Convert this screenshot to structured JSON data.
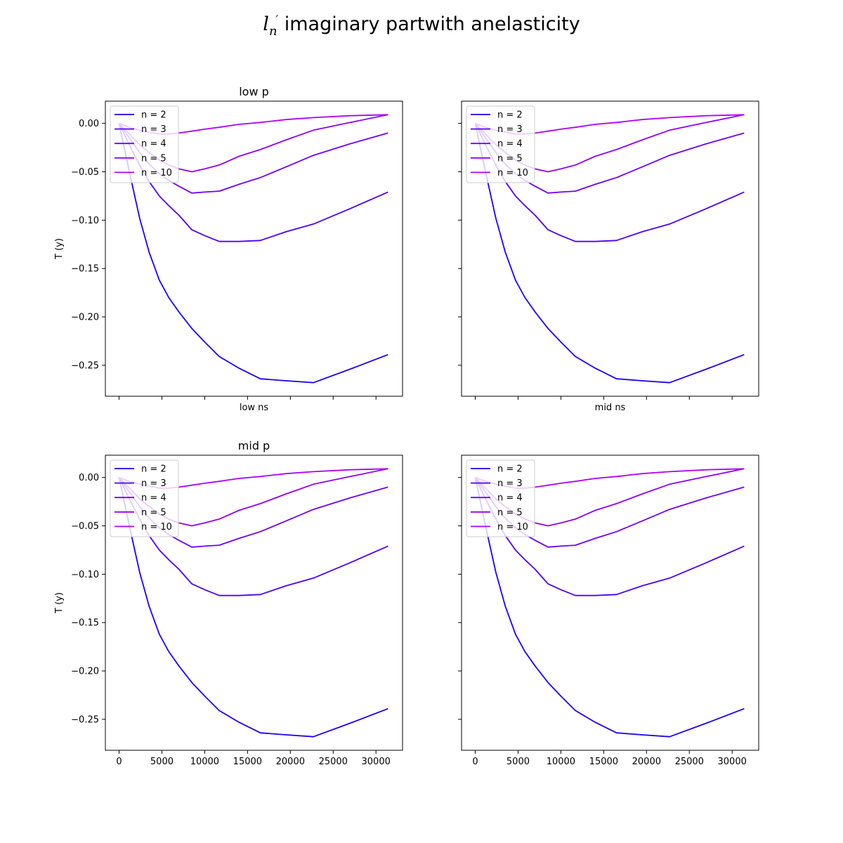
{
  "figure": {
    "suptitle_symbol": "l",
    "suptitle_sub": "n",
    "suptitle_prime": "′",
    "suptitle_text": " imaginary partwith anelasticity"
  },
  "colors": {
    "n2": "#1a00ff",
    "n3": "#4d00ff",
    "n4": "#7000ff",
    "n5": "#9300ff",
    "n10": "#b000ff"
  },
  "chart_data": [
    {
      "type": "line",
      "title": "low p",
      "xlabel": "low ns",
      "ylabel": "T (y)",
      "xlim": [
        -1600,
        33100
      ],
      "ylim": [
        -0.282,
        0.023
      ],
      "xticks": [
        "0",
        "5000",
        "10000",
        "15000",
        "20000",
        "25000",
        "30000"
      ],
      "xtick_values": [
        0,
        5000,
        10000,
        15000,
        20000,
        25000,
        30000
      ],
      "show_xtick_labels": false,
      "yticks": [
        "0.00",
        "−0.05",
        "−0.10",
        "−0.15",
        "−0.20",
        "−0.25"
      ],
      "ytick_values": [
        0.0,
        -0.05,
        -0.1,
        -0.15,
        -0.2,
        -0.25
      ],
      "show_ytick_labels": true,
      "legend_position": "upper-left",
      "grid": false,
      "series": [
        {
          "name": "n = 2",
          "color": "#1a00ff",
          "x": [
            0,
            1200,
            2400,
            3500,
            4700,
            5800,
            7000,
            8500,
            10000,
            11700,
            14000,
            16500,
            19500,
            22700,
            27000,
            31400
          ],
          "y": [
            0.0,
            -0.05,
            -0.098,
            -0.133,
            -0.162,
            -0.18,
            -0.195,
            -0.212,
            -0.226,
            -0.241,
            -0.253,
            -0.264,
            -0.266,
            -0.268,
            -0.254,
            -0.239
          ]
        },
        {
          "name": "n = 3",
          "color": "#4d00ff",
          "x": [
            0,
            1200,
            2400,
            3500,
            4700,
            5800,
            7000,
            8500,
            10000,
            11700,
            14000,
            16500,
            19500,
            22700,
            27000,
            31400
          ],
          "y": [
            0.0,
            -0.022,
            -0.043,
            -0.06,
            -0.075,
            -0.085,
            -0.095,
            -0.11,
            -0.116,
            -0.122,
            -0.122,
            -0.121,
            -0.112,
            -0.104,
            -0.088,
            -0.071
          ]
        },
        {
          "name": "n = 4",
          "color": "#7000ff",
          "x": [
            0,
            1200,
            2400,
            3500,
            4700,
            5800,
            7000,
            8500,
            10000,
            11700,
            14000,
            16500,
            19500,
            22700,
            27000,
            31400
          ],
          "y": [
            0.0,
            -0.015,
            -0.03,
            -0.042,
            -0.052,
            -0.059,
            -0.065,
            -0.072,
            -0.071,
            -0.07,
            -0.063,
            -0.056,
            -0.045,
            -0.033,
            -0.021,
            -0.01
          ]
        },
        {
          "name": "n = 5",
          "color": "#9300ff",
          "x": [
            0,
            1200,
            2400,
            3500,
            4700,
            5800,
            7000,
            8500,
            10000,
            11700,
            14000,
            16500,
            19500,
            22700,
            27000,
            31400
          ],
          "y": [
            0.0,
            -0.011,
            -0.022,
            -0.03,
            -0.038,
            -0.043,
            -0.047,
            -0.05,
            -0.047,
            -0.043,
            -0.034,
            -0.027,
            -0.017,
            -0.007,
            0.001,
            0.009
          ]
        },
        {
          "name": "n = 10",
          "color": "#b000ff",
          "x": [
            0,
            1200,
            2400,
            3500,
            4700,
            5800,
            7000,
            8500,
            10000,
            11700,
            14000,
            16500,
            19500,
            22700,
            27000,
            31400
          ],
          "y": [
            0.0,
            -0.004,
            -0.007,
            -0.009,
            -0.011,
            -0.011,
            -0.01,
            -0.008,
            -0.006,
            -0.004,
            -0.001,
            0.001,
            0.004,
            0.006,
            0.008,
            0.009
          ]
        }
      ]
    },
    {
      "type": "line",
      "title": "",
      "xlabel": "mid ns",
      "ylabel": "",
      "xlim": [
        -1600,
        33100
      ],
      "ylim": [
        -0.282,
        0.023
      ],
      "xticks": [
        "0",
        "5000",
        "10000",
        "15000",
        "20000",
        "25000",
        "30000"
      ],
      "xtick_values": [
        0,
        5000,
        10000,
        15000,
        20000,
        25000,
        30000
      ],
      "show_xtick_labels": false,
      "yticks": [
        "0.00",
        "−0.05",
        "−0.10",
        "−0.15",
        "−0.20",
        "−0.25"
      ],
      "ytick_values": [
        0.0,
        -0.05,
        -0.1,
        -0.15,
        -0.2,
        -0.25
      ],
      "show_ytick_labels": false,
      "legend_position": "upper-left",
      "grid": false,
      "series": [
        {
          "name": "n = 2",
          "color": "#1a00ff",
          "x": [
            0,
            1200,
            2400,
            3500,
            4700,
            5800,
            7000,
            8500,
            10000,
            11700,
            14000,
            16500,
            19500,
            22700,
            27000,
            31400
          ],
          "y": [
            0.0,
            -0.05,
            -0.098,
            -0.133,
            -0.162,
            -0.18,
            -0.195,
            -0.212,
            -0.226,
            -0.241,
            -0.253,
            -0.264,
            -0.266,
            -0.268,
            -0.254,
            -0.239
          ]
        },
        {
          "name": "n = 3",
          "color": "#4d00ff",
          "x": [
            0,
            1200,
            2400,
            3500,
            4700,
            5800,
            7000,
            8500,
            10000,
            11700,
            14000,
            16500,
            19500,
            22700,
            27000,
            31400
          ],
          "y": [
            0.0,
            -0.022,
            -0.043,
            -0.06,
            -0.075,
            -0.085,
            -0.095,
            -0.11,
            -0.116,
            -0.122,
            -0.122,
            -0.121,
            -0.112,
            -0.104,
            -0.088,
            -0.071
          ]
        },
        {
          "name": "n = 4",
          "color": "#7000ff",
          "x": [
            0,
            1200,
            2400,
            3500,
            4700,
            5800,
            7000,
            8500,
            10000,
            11700,
            14000,
            16500,
            19500,
            22700,
            27000,
            31400
          ],
          "y": [
            0.0,
            -0.015,
            -0.03,
            -0.042,
            -0.052,
            -0.059,
            -0.065,
            -0.072,
            -0.071,
            -0.07,
            -0.063,
            -0.056,
            -0.045,
            -0.033,
            -0.021,
            -0.01
          ]
        },
        {
          "name": "n = 5",
          "color": "#9300ff",
          "x": [
            0,
            1200,
            2400,
            3500,
            4700,
            5800,
            7000,
            8500,
            10000,
            11700,
            14000,
            16500,
            19500,
            22700,
            27000,
            31400
          ],
          "y": [
            0.0,
            -0.011,
            -0.022,
            -0.03,
            -0.038,
            -0.043,
            -0.047,
            -0.05,
            -0.047,
            -0.043,
            -0.034,
            -0.027,
            -0.017,
            -0.007,
            0.001,
            0.009
          ]
        },
        {
          "name": "n = 10",
          "color": "#b000ff",
          "x": [
            0,
            1200,
            2400,
            3500,
            4700,
            5800,
            7000,
            8500,
            10000,
            11700,
            14000,
            16500,
            19500,
            22700,
            27000,
            31400
          ],
          "y": [
            0.0,
            -0.004,
            -0.007,
            -0.009,
            -0.011,
            -0.011,
            -0.01,
            -0.008,
            -0.006,
            -0.004,
            -0.001,
            0.001,
            0.004,
            0.006,
            0.008,
            0.009
          ]
        }
      ]
    },
    {
      "type": "line",
      "title": "mid p",
      "xlabel": "",
      "ylabel": "T (y)",
      "xlim": [
        -1600,
        33100
      ],
      "ylim": [
        -0.282,
        0.023
      ],
      "xticks": [
        "0",
        "5000",
        "10000",
        "15000",
        "20000",
        "25000",
        "30000"
      ],
      "xtick_values": [
        0,
        5000,
        10000,
        15000,
        20000,
        25000,
        30000
      ],
      "show_xtick_labels": true,
      "yticks": [
        "0.00",
        "−0.05",
        "−0.10",
        "−0.15",
        "−0.20",
        "−0.25"
      ],
      "ytick_values": [
        0.0,
        -0.05,
        -0.1,
        -0.15,
        -0.2,
        -0.25
      ],
      "show_ytick_labels": true,
      "legend_position": "upper-left",
      "grid": false,
      "series": [
        {
          "name": "n = 2",
          "color": "#1a00ff",
          "x": [
            0,
            1200,
            2400,
            3500,
            4700,
            5800,
            7000,
            8500,
            10000,
            11700,
            14000,
            16500,
            19500,
            22700,
            27000,
            31400
          ],
          "y": [
            0.0,
            -0.05,
            -0.098,
            -0.133,
            -0.162,
            -0.18,
            -0.195,
            -0.212,
            -0.226,
            -0.241,
            -0.253,
            -0.264,
            -0.266,
            -0.268,
            -0.254,
            -0.239
          ]
        },
        {
          "name": "n = 3",
          "color": "#4d00ff",
          "x": [
            0,
            1200,
            2400,
            3500,
            4700,
            5800,
            7000,
            8500,
            10000,
            11700,
            14000,
            16500,
            19500,
            22700,
            27000,
            31400
          ],
          "y": [
            0.0,
            -0.022,
            -0.043,
            -0.06,
            -0.075,
            -0.085,
            -0.095,
            -0.11,
            -0.116,
            -0.122,
            -0.122,
            -0.121,
            -0.112,
            -0.104,
            -0.088,
            -0.071
          ]
        },
        {
          "name": "n = 4",
          "color": "#7000ff",
          "x": [
            0,
            1200,
            2400,
            3500,
            4700,
            5800,
            7000,
            8500,
            10000,
            11700,
            14000,
            16500,
            19500,
            22700,
            27000,
            31400
          ],
          "y": [
            0.0,
            -0.015,
            -0.03,
            -0.042,
            -0.052,
            -0.059,
            -0.065,
            -0.072,
            -0.071,
            -0.07,
            -0.063,
            -0.056,
            -0.045,
            -0.033,
            -0.021,
            -0.01
          ]
        },
        {
          "name": "n = 5",
          "color": "#9300ff",
          "x": [
            0,
            1200,
            2400,
            3500,
            4700,
            5800,
            7000,
            8500,
            10000,
            11700,
            14000,
            16500,
            19500,
            22700,
            27000,
            31400
          ],
          "y": [
            0.0,
            -0.011,
            -0.022,
            -0.03,
            -0.038,
            -0.043,
            -0.047,
            -0.05,
            -0.047,
            -0.043,
            -0.034,
            -0.027,
            -0.017,
            -0.007,
            0.001,
            0.009
          ]
        },
        {
          "name": "n = 10",
          "color": "#b000ff",
          "x": [
            0,
            1200,
            2400,
            3500,
            4700,
            5800,
            7000,
            8500,
            10000,
            11700,
            14000,
            16500,
            19500,
            22700,
            27000,
            31400
          ],
          "y": [
            0.0,
            -0.004,
            -0.007,
            -0.009,
            -0.011,
            -0.011,
            -0.01,
            -0.008,
            -0.006,
            -0.004,
            -0.001,
            0.001,
            0.004,
            0.006,
            0.008,
            0.009
          ]
        }
      ]
    },
    {
      "type": "line",
      "title": "",
      "xlabel": "",
      "ylabel": "",
      "xlim": [
        -1600,
        33100
      ],
      "ylim": [
        -0.282,
        0.023
      ],
      "xticks": [
        "0",
        "5000",
        "10000",
        "15000",
        "20000",
        "25000",
        "30000"
      ],
      "xtick_values": [
        0,
        5000,
        10000,
        15000,
        20000,
        25000,
        30000
      ],
      "show_xtick_labels": true,
      "yticks": [
        "0.00",
        "−0.05",
        "−0.10",
        "−0.15",
        "−0.20",
        "−0.25"
      ],
      "ytick_values": [
        0.0,
        -0.05,
        -0.1,
        -0.15,
        -0.2,
        -0.25
      ],
      "show_ytick_labels": false,
      "legend_position": "upper-left",
      "grid": false,
      "series": [
        {
          "name": "n = 2",
          "color": "#1a00ff",
          "x": [
            0,
            1200,
            2400,
            3500,
            4700,
            5800,
            7000,
            8500,
            10000,
            11700,
            14000,
            16500,
            19500,
            22700,
            27000,
            31400
          ],
          "y": [
            0.0,
            -0.05,
            -0.098,
            -0.133,
            -0.162,
            -0.18,
            -0.195,
            -0.212,
            -0.226,
            -0.241,
            -0.253,
            -0.264,
            -0.266,
            -0.268,
            -0.254,
            -0.239
          ]
        },
        {
          "name": "n = 3",
          "color": "#4d00ff",
          "x": [
            0,
            1200,
            2400,
            3500,
            4700,
            5800,
            7000,
            8500,
            10000,
            11700,
            14000,
            16500,
            19500,
            22700,
            27000,
            31400
          ],
          "y": [
            0.0,
            -0.022,
            -0.043,
            -0.06,
            -0.075,
            -0.085,
            -0.095,
            -0.11,
            -0.116,
            -0.122,
            -0.122,
            -0.121,
            -0.112,
            -0.104,
            -0.088,
            -0.071
          ]
        },
        {
          "name": "n = 4",
          "color": "#7000ff",
          "x": [
            0,
            1200,
            2400,
            3500,
            4700,
            5800,
            7000,
            8500,
            10000,
            11700,
            14000,
            16500,
            19500,
            22700,
            27000,
            31400
          ],
          "y": [
            0.0,
            -0.015,
            -0.03,
            -0.042,
            -0.052,
            -0.059,
            -0.065,
            -0.072,
            -0.071,
            -0.07,
            -0.063,
            -0.056,
            -0.045,
            -0.033,
            -0.021,
            -0.01
          ]
        },
        {
          "name": "n = 5",
          "color": "#9300ff",
          "x": [
            0,
            1200,
            2400,
            3500,
            4700,
            5800,
            7000,
            8500,
            10000,
            11700,
            14000,
            16500,
            19500,
            22700,
            27000,
            31400
          ],
          "y": [
            0.0,
            -0.011,
            -0.022,
            -0.03,
            -0.038,
            -0.043,
            -0.047,
            -0.05,
            -0.047,
            -0.043,
            -0.034,
            -0.027,
            -0.017,
            -0.007,
            0.001,
            0.009
          ]
        },
        {
          "name": "n = 10",
          "color": "#b000ff",
          "x": [
            0,
            1200,
            2400,
            3500,
            4700,
            5800,
            7000,
            8500,
            10000,
            11700,
            14000,
            16500,
            19500,
            22700,
            27000,
            31400
          ],
          "y": [
            0.0,
            -0.004,
            -0.007,
            -0.009,
            -0.011,
            -0.011,
            -0.01,
            -0.008,
            -0.006,
            -0.004,
            -0.001,
            0.001,
            0.004,
            0.006,
            0.008,
            0.009
          ]
        }
      ]
    }
  ]
}
